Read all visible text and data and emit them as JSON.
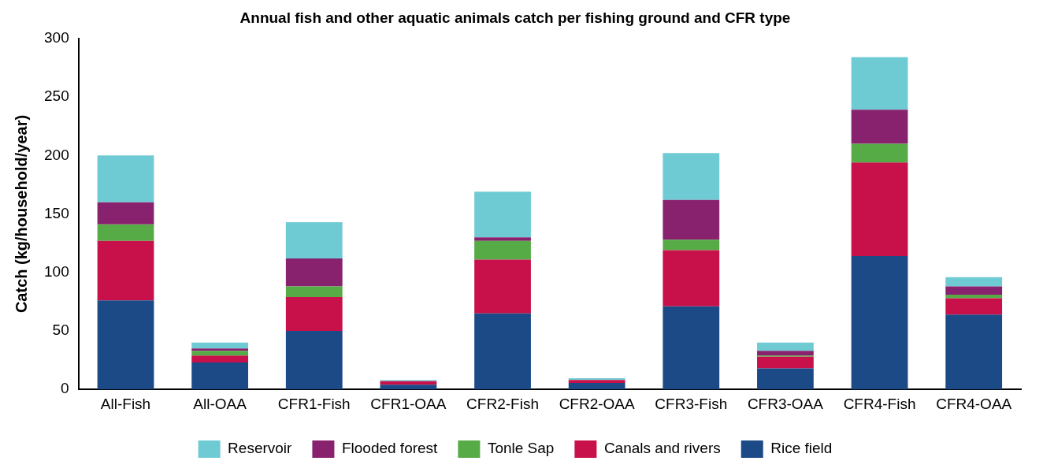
{
  "chart_data": {
    "type": "bar",
    "title": "Annual fish and other aquatic animals catch per fishing ground and CFR type",
    "ylabel": "Catch (kg/household/year)",
    "categories": [
      "All-Fish",
      "All-OAA",
      "CFR1-Fish",
      "CFR1-OAA",
      "CFR2-Fish",
      "CFR2-OAA",
      "CFR3-Fish",
      "CFR3-OAA",
      "CFR4-Fish",
      "CFR4-OAA"
    ],
    "stacked": true,
    "ylim": [
      0,
      300
    ],
    "yticks": [
      0,
      50,
      100,
      150,
      200,
      250,
      300
    ],
    "grid": false,
    "legend": "bottom",
    "series": [
      {
        "name": "Rice field",
        "color": "#1b4a87",
        "values": [
          76,
          23,
          50,
          4,
          65,
          5.5,
          71,
          18,
          114,
          64
        ]
      },
      {
        "name": "Canals and rivers",
        "color": "#c8104a",
        "values": [
          51,
          6,
          29,
          3,
          46,
          2.5,
          48,
          10,
          80,
          14
        ]
      },
      {
        "name": "Tonle Sap",
        "color": "#56ab46",
        "values": [
          14,
          4,
          9,
          0,
          16,
          0,
          9,
          1,
          16,
          3
        ]
      },
      {
        "name": "Flooded forest",
        "color": "#88226e",
        "values": [
          19,
          2,
          24,
          0,
          3,
          0,
          34,
          4,
          29,
          7
        ]
      },
      {
        "name": "Reservoir",
        "color": "#6fcbd3",
        "values": [
          40,
          5,
          31,
          1,
          39,
          1.5,
          40,
          7,
          45,
          8
        ]
      }
    ]
  }
}
